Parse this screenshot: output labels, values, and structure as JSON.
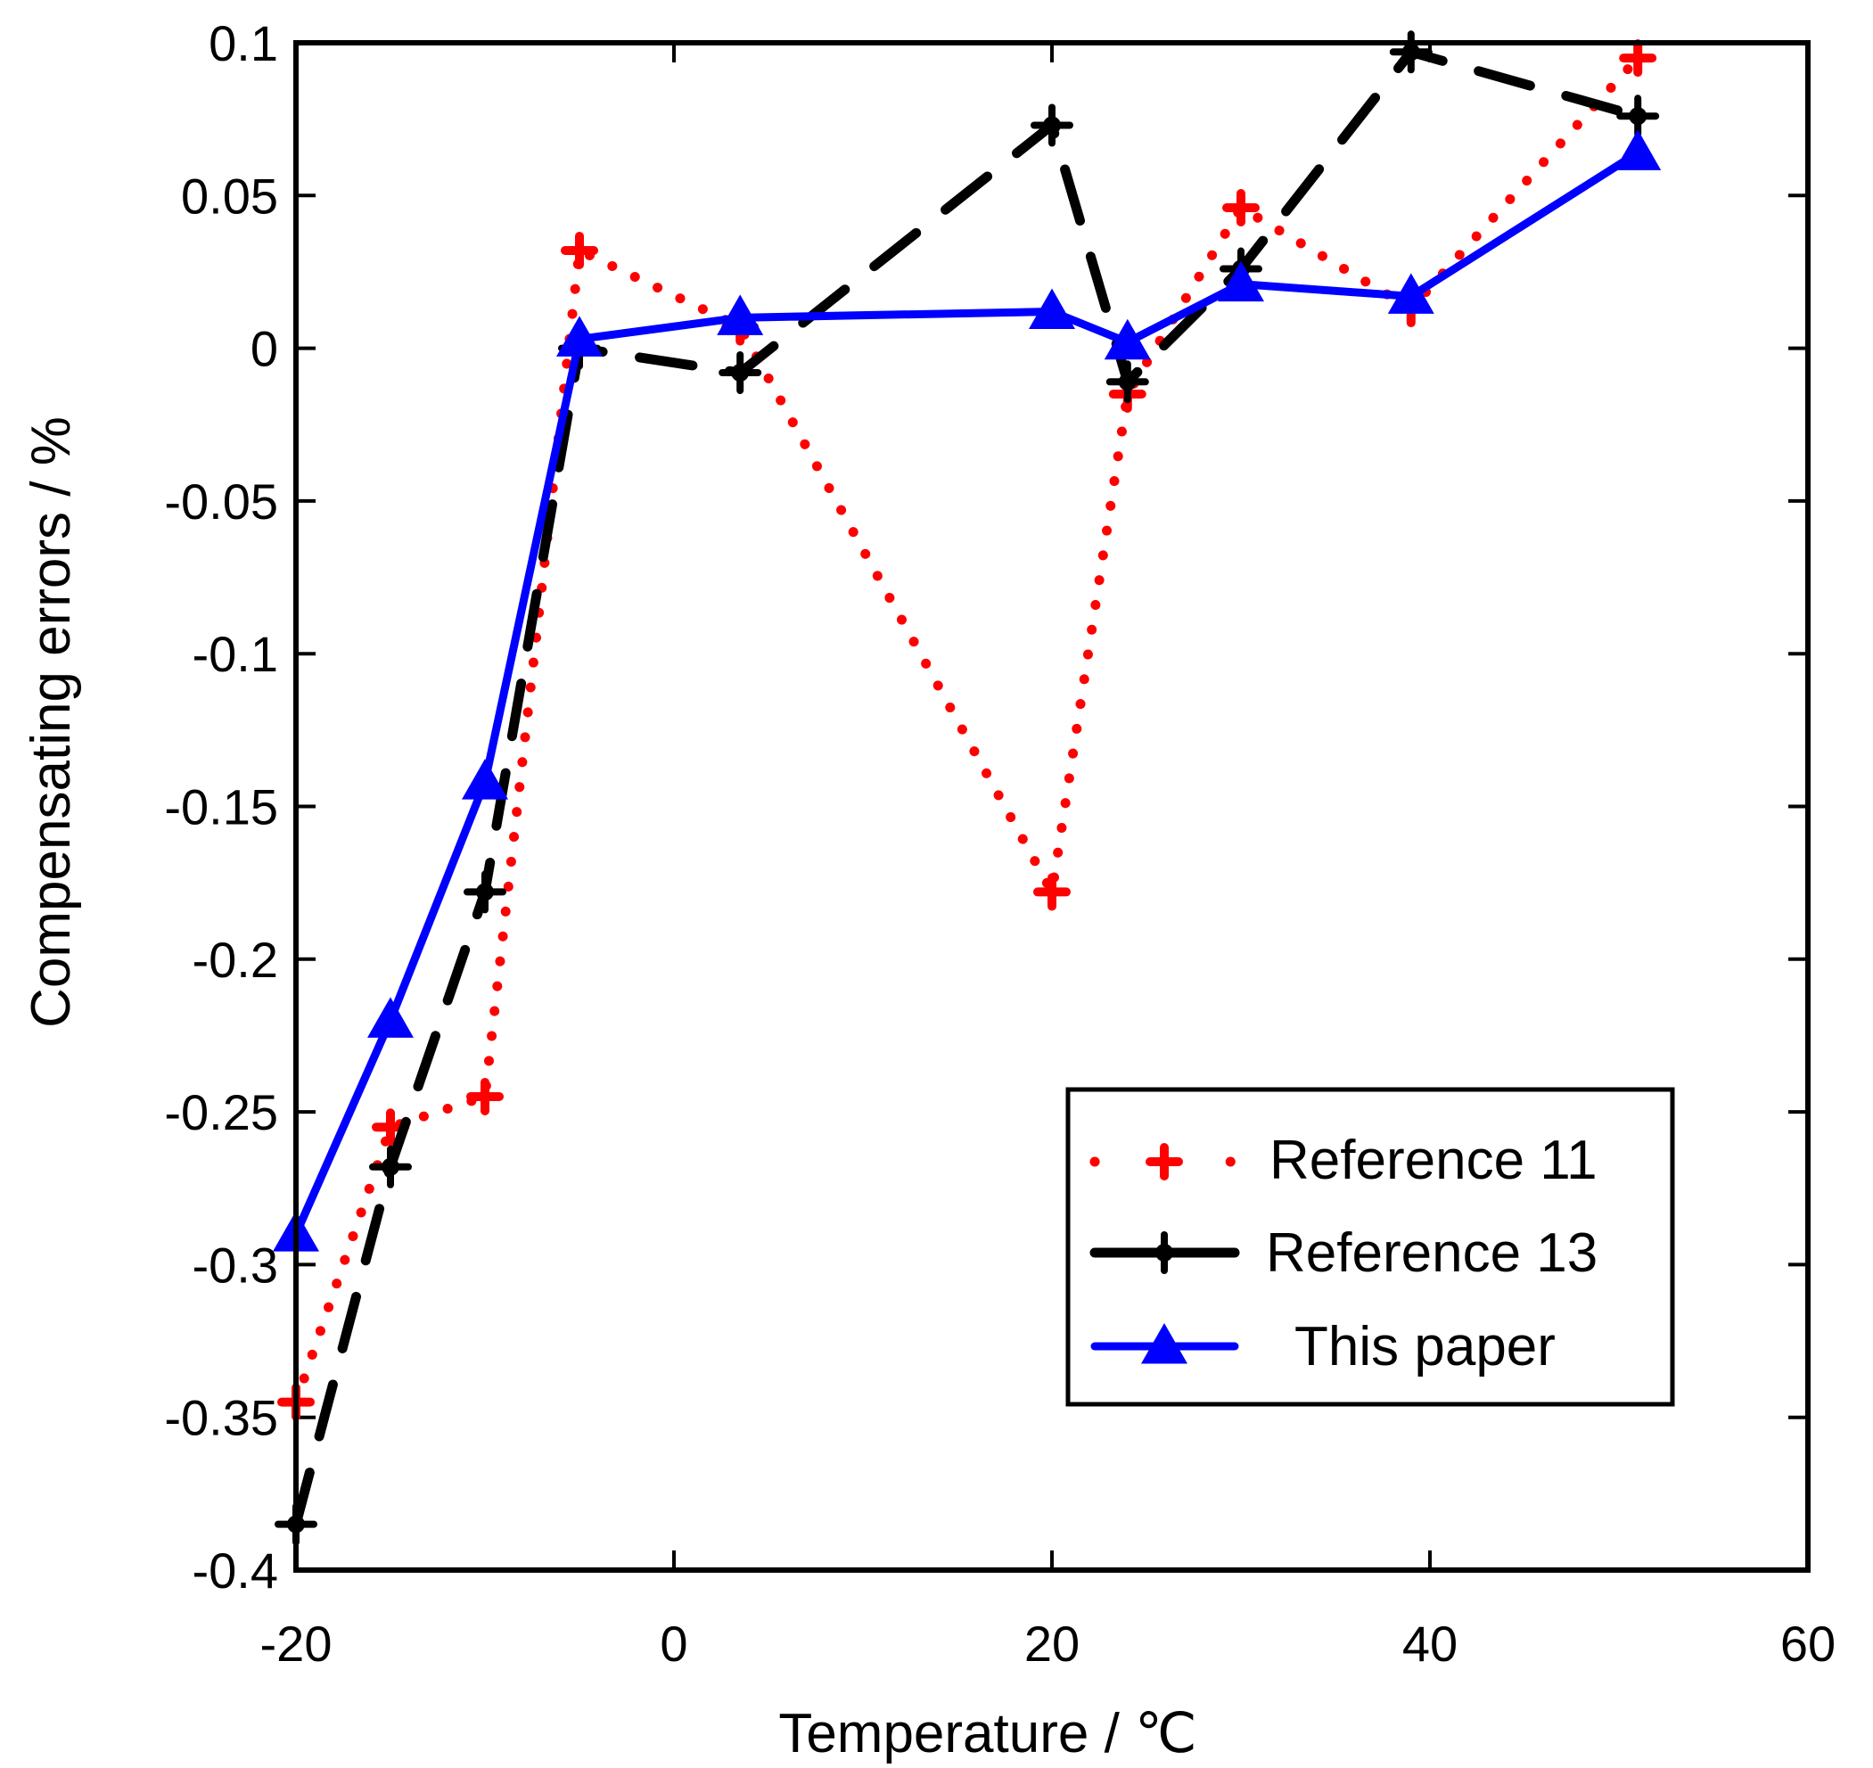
{
  "chart_data": {
    "type": "line",
    "title": "",
    "xlabel": "Temperature / ℃",
    "ylabel": "Compensating errors / %",
    "xlim": [
      -20,
      60
    ],
    "ylim": [
      -0.4,
      0.1
    ],
    "xticks": [
      -20,
      0,
      20,
      40,
      60
    ],
    "xtick_labels": [
      "-20",
      "0",
      "20",
      "40",
      "60"
    ],
    "yticks": [
      0.1,
      0.05,
      0,
      -0.05,
      -0.1,
      -0.15,
      -0.2,
      -0.25,
      -0.3,
      -0.35,
      -0.4
    ],
    "ytick_labels": [
      "0.1",
      "0.05",
      "0",
      "-0.05",
      "-0.1",
      "-0.15",
      "-0.2",
      "-0.25",
      "-0.3",
      "-0.35",
      "-0.4"
    ],
    "grid": false,
    "legend_position": "bottom-right",
    "series": [
      {
        "name": "Reference  11",
        "color": "#ff0000",
        "line_style": "dotted",
        "marker": "plus",
        "x": [
          -20,
          -15,
          -10,
          -5,
          3.5,
          20,
          24,
          30,
          39,
          51
        ],
        "y": [
          -0.345,
          -0.255,
          -0.245,
          0.032,
          0.007,
          -0.178,
          -0.015,
          0.046,
          0.013,
          0.095
        ]
      },
      {
        "name": "Reference 13",
        "color": "#000000",
        "line_style": "dashed",
        "marker": "diamond",
        "x": [
          -20,
          -15,
          -10,
          -5,
          3.5,
          20,
          24,
          30,
          39,
          51
        ],
        "y": [
          -0.385,
          -0.268,
          -0.178,
          0.0,
          -0.008,
          0.073,
          -0.011,
          0.026,
          0.097,
          0.076
        ]
      },
      {
        "name": "This paper",
        "color": "#0000ff",
        "line_style": "solid",
        "marker": "triangle",
        "x": [
          -20,
          -15,
          -10,
          -5,
          3.5,
          20,
          24,
          30,
          39,
          51
        ],
        "y": [
          -0.29,
          -0.22,
          -0.142,
          0.003,
          0.01,
          0.012,
          0.002,
          0.021,
          0.017,
          0.064
        ]
      }
    ]
  }
}
